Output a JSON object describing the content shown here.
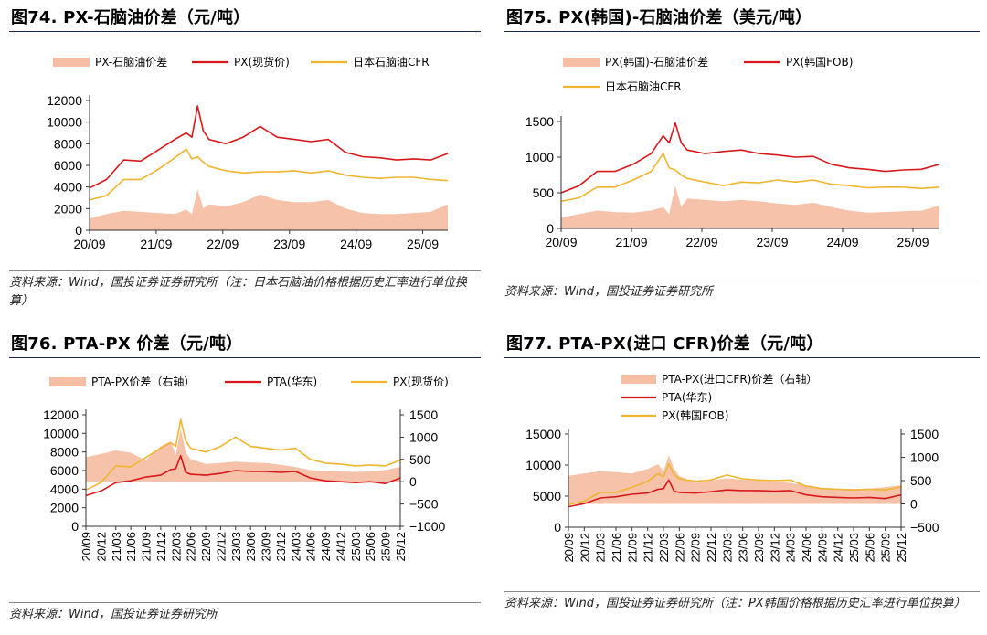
{
  "panels": [
    {
      "title": "图74. PX-石脑油价差（元/吨）",
      "source": "资料来源：Wind，国投证券证券研究所（注：日本石脑油价格根据历史汇率进行单位换算）"
    },
    {
      "title": "图75. PX(韩国)-石脑油价差（美元/吨）",
      "source": "资料来源：Wind，国投证券证券研究所"
    },
    {
      "title": "图76. PTA-PX 价差（元/吨）",
      "source": "资料来源：Wind，国投证券证券研究所"
    },
    {
      "title": "图77. PTA-PX(进口 CFR)价差（元/吨）",
      "source": "资料来源：Wind，国投证券证券研究所（注：PX韩国价格根据历史汇率进行单位换算）"
    }
  ],
  "colors": {
    "spread": "#f6bfa4",
    "red": "#d7191c",
    "gold": "#f0b52f",
    "axis": "#333333"
  },
  "chart_data": [
    {
      "type": "line",
      "title": "PX-石脑油价差（元/吨）",
      "legend": [
        "PX-石脑油价差",
        "PX(现货价)",
        "日本石脑油CFR"
      ],
      "x_ticks": [
        "20/09",
        "21/09",
        "22/09",
        "23/09",
        "24/09",
        "25/09"
      ],
      "ylim": [
        0,
        12000
      ],
      "y_ticks": [
        0,
        2000,
        4000,
        6000,
        8000,
        10000,
        12000
      ],
      "x": [
        0,
        3,
        6,
        9,
        12,
        15,
        17,
        18,
        19,
        20,
        21,
        24,
        27,
        30,
        33,
        36,
        39,
        42,
        45,
        48,
        51,
        54,
        57,
        60,
        63
      ],
      "series": [
        {
          "name": "PX-石脑油价差",
          "kind": "area",
          "values": [
            1100,
            1500,
            1800,
            1700,
            1600,
            1500,
            1900,
            1500,
            3800,
            2000,
            2400,
            2200,
            2600,
            3300,
            2800,
            2600,
            2600,
            2800,
            2000,
            1600,
            1500,
            1500,
            1600,
            1700,
            2400
          ]
        },
        {
          "name": "PX(现货价)",
          "kind": "line",
          "values": [
            3900,
            4700,
            6500,
            6400,
            7400,
            8400,
            9000,
            8600,
            11500,
            9200,
            8400,
            8000,
            8600,
            9600,
            8600,
            8400,
            8200,
            8400,
            7200,
            6800,
            6700,
            6500,
            6600,
            6500,
            7100
          ]
        },
        {
          "name": "日本石脑油CFR",
          "kind": "line",
          "values": [
            2800,
            3200,
            4700,
            4700,
            5600,
            6700,
            7500,
            6600,
            6800,
            6300,
            5900,
            5500,
            5300,
            5400,
            5400,
            5500,
            5300,
            5500,
            5100,
            4900,
            4800,
            4900,
            4900,
            4700,
            4600
          ]
        }
      ]
    },
    {
      "type": "line",
      "title": "PX(韩国)-石脑油价差（美元/吨）",
      "legend": [
        "PX(韩国)-石脑油价差",
        "PX(韩国FOB)",
        "日本石脑油CFR"
      ],
      "x_ticks": [
        "20/09",
        "21/09",
        "22/09",
        "23/09",
        "24/09",
        "25/09"
      ],
      "ylim": [
        0,
        1500
      ],
      "y_ticks": [
        0,
        500,
        1000,
        1500
      ],
      "x": [
        0,
        3,
        6,
        9,
        12,
        15,
        17,
        18,
        19,
        20,
        21,
        24,
        27,
        30,
        33,
        36,
        39,
        42,
        45,
        48,
        51,
        54,
        57,
        60,
        63
      ],
      "series": [
        {
          "name": "PX(韩国)-石脑油价差",
          "kind": "area",
          "values": [
            150,
            200,
            250,
            230,
            220,
            250,
            300,
            200,
            600,
            300,
            420,
            400,
            380,
            400,
            380,
            350,
            330,
            360,
            300,
            250,
            220,
            230,
            240,
            250,
            320
          ]
        },
        {
          "name": "PX(韩国FOB)",
          "kind": "line",
          "values": [
            500,
            600,
            800,
            800,
            900,
            1050,
            1300,
            1200,
            1480,
            1200,
            1100,
            1050,
            1080,
            1100,
            1050,
            1030,
            1000,
            1010,
            900,
            850,
            830,
            800,
            820,
            830,
            900
          ]
        },
        {
          "name": "日本石脑油CFR",
          "kind": "line",
          "values": [
            380,
            430,
            580,
            580,
            680,
            800,
            1050,
            850,
            820,
            750,
            700,
            650,
            600,
            650,
            640,
            680,
            650,
            680,
            620,
            600,
            570,
            580,
            580,
            560,
            580
          ]
        }
      ]
    },
    {
      "type": "line",
      "title": "PTA-PX 价差（元/吨）",
      "legend": [
        "PTA-PX价差（右轴）",
        "PTA(华东)",
        "PX(现货价)"
      ],
      "x_ticks": [
        "20/09",
        "20/12",
        "21/03",
        "21/06",
        "21/09",
        "21/12",
        "22/03",
        "22/06",
        "22/09",
        "22/12",
        "23/03",
        "23/06",
        "23/09",
        "23/12",
        "24/03",
        "24/06",
        "24/09",
        "24/12",
        "25/03",
        "25/06",
        "25/09",
        "25/12"
      ],
      "ylim": [
        0,
        12000
      ],
      "y_ticks": [
        0,
        2000,
        4000,
        6000,
        8000,
        10000,
        12000
      ],
      "y2lim": [
        -1000,
        1500
      ],
      "y2_ticks": [
        -1000,
        -500,
        0,
        500,
        1000,
        1500
      ],
      "x": [
        0,
        3,
        6,
        9,
        12,
        15,
        17,
        18,
        19,
        20,
        21,
        24,
        27,
        30,
        33,
        36,
        39,
        42,
        45,
        48,
        51,
        54,
        57,
        60,
        63
      ],
      "series": [
        {
          "name": "PTA-PX价差（右轴）",
          "kind": "area",
          "axis": "right",
          "values": [
            550,
            620,
            700,
            650,
            480,
            800,
            900,
            600,
            1200,
            650,
            500,
            400,
            420,
            450,
            430,
            420,
            380,
            330,
            260,
            240,
            230,
            220,
            230,
            260,
            330
          ]
        },
        {
          "name": "PTA(华东)",
          "kind": "line",
          "values": [
            3300,
            3800,
            4700,
            4900,
            5300,
            5500,
            6100,
            6200,
            7600,
            5800,
            5600,
            5500,
            5700,
            6000,
            5900,
            5900,
            5800,
            5900,
            5200,
            4900,
            4800,
            4700,
            4800,
            4600,
            5200
          ]
        },
        {
          "name": "PX(现货价)",
          "kind": "line",
          "values": [
            3900,
            4700,
            6500,
            6400,
            7400,
            8400,
            9000,
            8600,
            11500,
            9200,
            8400,
            8000,
            8600,
            9600,
            8600,
            8400,
            8200,
            8400,
            7200,
            6800,
            6700,
            6500,
            6600,
            6500,
            7100
          ]
        }
      ]
    },
    {
      "type": "line",
      "title": "PTA-PX(进口 CFR)价差（元/吨）",
      "legend": [
        "PTA-PX(进口CFR)价差（右轴）",
        "PTA(华东)",
        "PX(韩国FOB)"
      ],
      "x_ticks": [
        "20/09",
        "20/12",
        "21/03",
        "21/06",
        "21/09",
        "21/12",
        "22/03",
        "22/06",
        "22/09",
        "22/12",
        "23/03",
        "23/06",
        "23/09",
        "23/12",
        "24/03",
        "24/06",
        "24/09",
        "24/12",
        "25/03",
        "25/06",
        "25/09",
        "25/12"
      ],
      "ylim": [
        0,
        15000
      ],
      "y_ticks": [
        0,
        5000,
        10000,
        15000
      ],
      "y2lim": [
        -500,
        1500
      ],
      "y2_ticks": [
        -500,
        0,
        500,
        1000,
        1500
      ],
      "x": [
        0,
        3,
        6,
        9,
        12,
        15,
        17,
        18,
        19,
        20,
        21,
        24,
        27,
        30,
        33,
        36,
        39,
        42,
        45,
        48,
        51,
        54,
        57,
        60,
        63
      ],
      "series": [
        {
          "name": "PTA-PX(进口CFR)价差（右轴）",
          "kind": "area",
          "axis": "right",
          "values": [
            600,
            650,
            700,
            680,
            650,
            750,
            850,
            700,
            1050,
            750,
            600,
            450,
            500,
            550,
            520,
            500,
            480,
            450,
            400,
            350,
            330,
            320,
            330,
            360,
            400
          ]
        },
        {
          "name": "PTA(华东)",
          "kind": "line",
          "values": [
            3300,
            3800,
            4700,
            4900,
            5300,
            5500,
            6100,
            6200,
            7600,
            5800,
            5600,
            5500,
            5700,
            6000,
            5900,
            5900,
            5800,
            5900,
            5200,
            4900,
            4800,
            4700,
            4800,
            4600,
            5200
          ]
        },
        {
          "name": "PX(韩国FOB)",
          "kind": "line",
          "values": [
            3600,
            4200,
            5600,
            5600,
            6400,
            7400,
            8600,
            8100,
            10200,
            8400,
            7800,
            7400,
            7600,
            8400,
            7800,
            7600,
            7500,
            7600,
            6600,
            6200,
            6100,
            6000,
            6100,
            6000,
            6500
          ]
        }
      ]
    }
  ]
}
